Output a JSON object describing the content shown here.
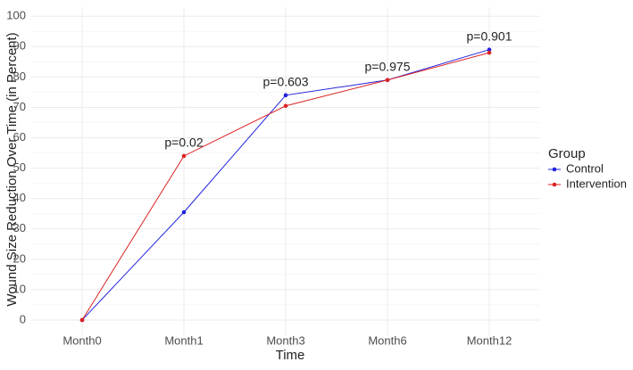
{
  "chart_data": {
    "type": "line",
    "x_label": "Time",
    "y_label": "Wound Size Reduction Over Time (in Percent)",
    "categories": [
      "Month0",
      "Month1",
      "Month3",
      "Month6",
      "Month12"
    ],
    "series": [
      {
        "name": "Control",
        "color": "#2222dd",
        "values": [
          0,
          35.5,
          74,
          79,
          89
        ]
      },
      {
        "name": "Intervention",
        "color": "#dd2222",
        "values": [
          0,
          54,
          70.5,
          79,
          88
        ]
      }
    ],
    "annotations": [
      null,
      "p=0.02",
      "p=0.603",
      "p=0.975",
      "p=0.901"
    ],
    "ylim": [
      -5,
      103
    ],
    "yticks": [
      0,
      10,
      20,
      30,
      40,
      50,
      60,
      70,
      80,
      90,
      100
    ],
    "grid": true,
    "legend_title": "Group",
    "legend_position": "right"
  }
}
